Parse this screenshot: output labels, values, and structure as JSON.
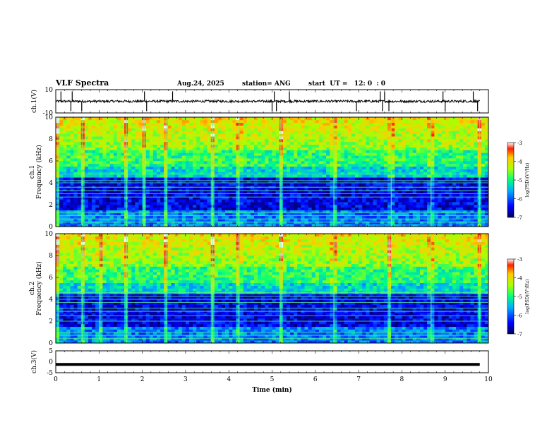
{
  "header": {
    "title": "VLF Spectra",
    "date": "Aug.24, 2025",
    "station": "station= ANG",
    "start": "start  UT =   12: 0  : 0"
  },
  "chart_data": [
    {
      "type": "line",
      "name": "ch1-waveform",
      "ylabel": "ch.1(V)",
      "ylim": [
        -10,
        10
      ],
      "yticks": [
        "10",
        "-10"
      ],
      "xlim": [
        0,
        10
      ],
      "baseline": 0,
      "noise_amplitude": 1,
      "spike_times_min": [
        0.12,
        0.35,
        0.38,
        0.6,
        2.05,
        2.1,
        2.7,
        5.0,
        5.05,
        5.1,
        5.4,
        6.95,
        7.5,
        7.55,
        7.6,
        7.7,
        8.95,
        9.0,
        9.65,
        9.75
      ]
    },
    {
      "type": "heatmap",
      "name": "ch1-spectrogram",
      "label": "ch.1",
      "ylabel": "Frequency (kHz)",
      "ylim": [
        0,
        10
      ],
      "yticks": [
        "0",
        "2",
        "4",
        "6",
        "8",
        "10"
      ],
      "xlim": [
        0,
        9.8
      ],
      "colorbar": {
        "label": "log(PSD)(V²/Hz)",
        "range": [
          -7,
          -3
        ],
        "ticks": [
          "-3",
          "-4",
          "-5",
          "-6",
          "-7"
        ]
      },
      "line_frequencies_khz": [
        0.4,
        0.7,
        1.0,
        1.3,
        2.7,
        3.0,
        3.3,
        3.6,
        4.0,
        4.2,
        4.8
      ],
      "burst_times_min": [
        0.05,
        0.6,
        1.6,
        2.0,
        2.5,
        3.55,
        4.15,
        5.1,
        6.3,
        7.6,
        8.5,
        9.6
      ]
    },
    {
      "type": "heatmap",
      "name": "ch2-spectrogram",
      "label": "ch.2",
      "ylabel": "Frequency (kHz)",
      "ylim": [
        0,
        10
      ],
      "yticks": [
        "0",
        "2",
        "4",
        "6",
        "8",
        "10"
      ],
      "xlim": [
        0,
        9.8
      ],
      "colorbar": {
        "label": "log(PSD)(V²/Hz)",
        "range": [
          -7,
          -3
        ],
        "ticks": [
          "-3",
          "-4",
          "-5",
          "-6",
          "-7"
        ]
      },
      "line_frequencies_khz": [
        0.4,
        0.7,
        1.0,
        2.0,
        2.5,
        2.9,
        3.2,
        3.7,
        4.0,
        4.3,
        4.6
      ],
      "burst_times_min": [
        0.05,
        0.6,
        1.0,
        1.6,
        2.5,
        3.55,
        4.15,
        5.1,
        6.3,
        7.55,
        8.5,
        9.6
      ]
    },
    {
      "type": "line",
      "name": "ch3-waveform",
      "ylabel": "ch.3(V)",
      "ylim": [
        -5,
        5
      ],
      "yticks": [
        "5",
        "0",
        "-5"
      ],
      "xlim": [
        0,
        10
      ],
      "xlabel": "Time (min)",
      "xticks": [
        "0",
        "1",
        "2",
        "3",
        "4",
        "5",
        "6",
        "7",
        "8",
        "9",
        "10"
      ],
      "constant_value": -1.2,
      "data_end_min": 9.8
    }
  ]
}
